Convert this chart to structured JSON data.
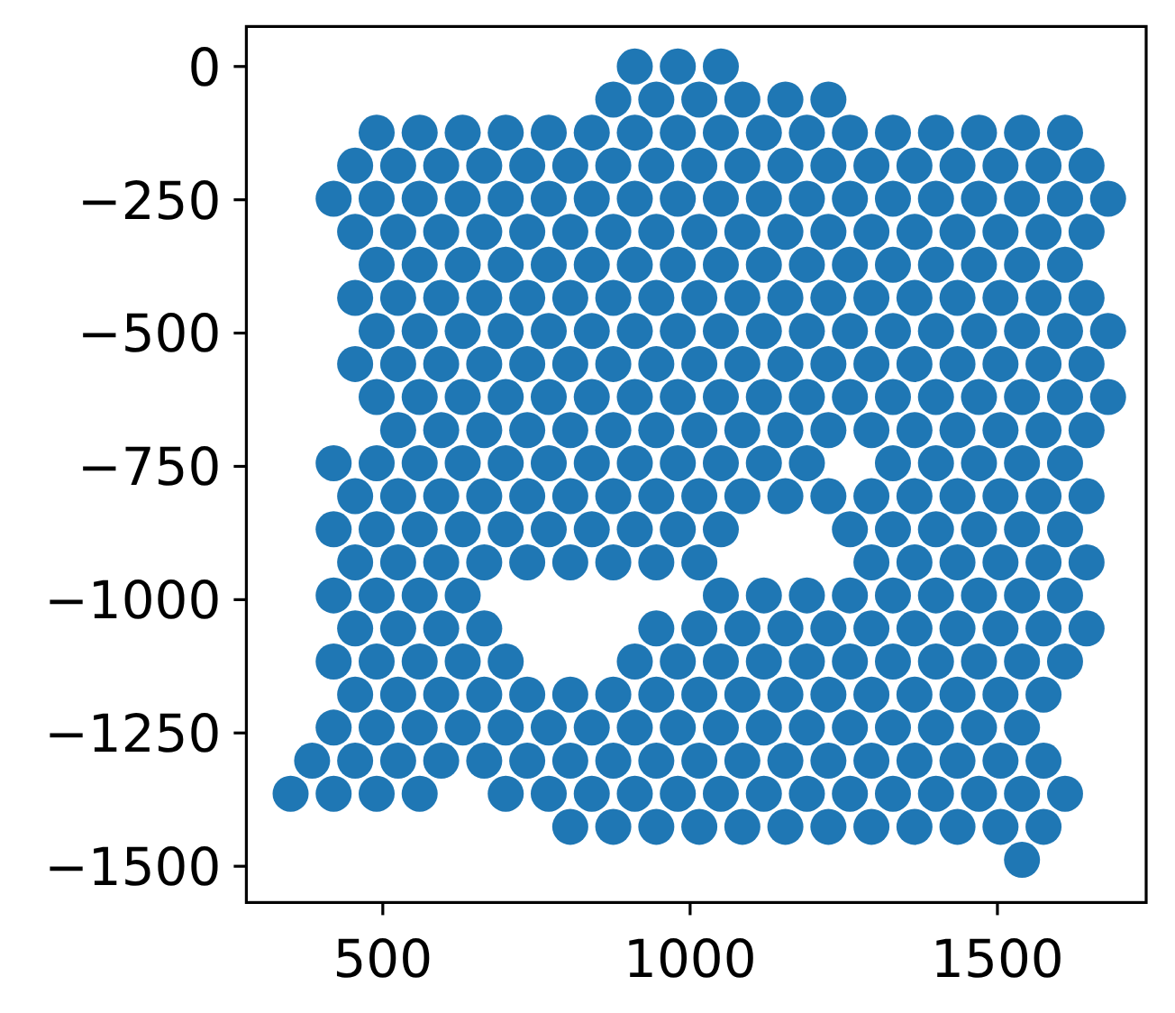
{
  "chart_data": {
    "type": "scatter",
    "color": "#1f77b4",
    "marker": "circle",
    "xlim": [
      278,
      1742
    ],
    "ylim": [
      -1568,
      75
    ],
    "xticks": [
      500,
      1000,
      1500
    ],
    "yticks": [
      0,
      {
        "value": -250,
        "label": "−250"
      },
      {
        "value": -500,
        "label": "−500"
      },
      {
        "value": -750,
        "label": "−750"
      },
      {
        "value": -1000,
        "label": "−1000"
      },
      {
        "value": -1250,
        "label": "−1250"
      },
      {
        "value": -1500,
        "label": "−1500"
      }
    ],
    "x": [
      910,
      980,
      1050,
      875,
      945,
      1015,
      1085,
      1155,
      1225,
      490,
      560,
      630,
      700,
      770,
      840,
      910,
      980,
      1050,
      1120,
      1190,
      1260,
      1330,
      1400,
      1470,
      1540,
      1610,
      455,
      525,
      595,
      665,
      735,
      805,
      875,
      945,
      1015,
      1085,
      1155,
      1225,
      1295,
      1365,
      1435,
      1505,
      1575,
      1645,
      420,
      490,
      560,
      630,
      700,
      770,
      840,
      910,
      980,
      1050,
      1120,
      1190,
      1260,
      1330,
      1400,
      1470,
      1540,
      1610,
      1680,
      455,
      525,
      595,
      665,
      735,
      805,
      875,
      945,
      1015,
      1085,
      1155,
      1225,
      1295,
      1365,
      1435,
      1505,
      1575,
      1645,
      490,
      560,
      630,
      700,
      770,
      840,
      910,
      980,
      1050,
      1120,
      1190,
      1260,
      1330,
      1400,
      1470,
      1540,
      1610,
      455,
      525,
      595,
      665,
      735,
      805,
      875,
      945,
      1015,
      1085,
      1155,
      1225,
      1295,
      1365,
      1435,
      1505,
      1575,
      1645,
      490,
      560,
      630,
      700,
      770,
      840,
      910,
      980,
      1050,
      1120,
      1190,
      1260,
      1330,
      1400,
      1470,
      1540,
      1610,
      1680,
      455,
      525,
      595,
      665,
      735,
      805,
      875,
      945,
      1015,
      1085,
      1155,
      1225,
      1295,
      1365,
      1435,
      1505,
      1575,
      1645,
      490,
      560,
      630,
      700,
      770,
      840,
      910,
      980,
      1050,
      1120,
      1190,
      1260,
      1330,
      1400,
      1470,
      1540,
      1610,
      1680,
      525,
      595,
      665,
      735,
      805,
      875,
      945,
      1015,
      1085,
      1155,
      1225,
      1295,
      1365,
      1435,
      1505,
      1575,
      1645,
      420,
      490,
      560,
      630,
      700,
      770,
      840,
      910,
      980,
      1050,
      1120,
      1190,
      1330,
      1400,
      1470,
      1540,
      1610,
      455,
      525,
      595,
      665,
      735,
      805,
      875,
      945,
      1015,
      1085,
      1155,
      1225,
      1295,
      1365,
      1435,
      1505,
      1575,
      1645,
      420,
      490,
      560,
      630,
      700,
      770,
      840,
      910,
      980,
      1050,
      1260,
      1330,
      1400,
      1470,
      1540,
      1610,
      455,
      525,
      595,
      665,
      735,
      805,
      875,
      945,
      1015,
      1295,
      1365,
      1435,
      1505,
      1575,
      1645,
      420,
      490,
      560,
      630,
      1050,
      1120,
      1190,
      1260,
      1330,
      1400,
      1470,
      1540,
      1610,
      455,
      525,
      595,
      665,
      945,
      1015,
      1085,
      1155,
      1225,
      1295,
      1365,
      1435,
      1505,
      1575,
      1645,
      420,
      490,
      560,
      630,
      700,
      910,
      980,
      1050,
      1120,
      1190,
      1260,
      1330,
      1400,
      1470,
      1540,
      1610,
      455,
      525,
      595,
      665,
      735,
      805,
      875,
      945,
      1015,
      1085,
      1155,
      1225,
      1295,
      1365,
      1435,
      1505,
      1575,
      420,
      490,
      560,
      630,
      700,
      770,
      840,
      910,
      980,
      1050,
      1120,
      1190,
      1260,
      1330,
      1400,
      1470,
      1540,
      385,
      455,
      525,
      595,
      665,
      735,
      805,
      875,
      945,
      1015,
      1085,
      1155,
      1225,
      1295,
      1365,
      1435,
      1505,
      1575,
      350,
      420,
      490,
      560,
      700,
      770,
      840,
      910,
      980,
      1050,
      1120,
      1190,
      1260,
      1330,
      1400,
      1470,
      1540,
      1610,
      805,
      875,
      945,
      1015,
      1085,
      1155,
      1225,
      1295,
      1365,
      1435,
      1505,
      1575,
      1540
    ],
    "values": [
      0,
      0,
      0,
      -62,
      -62,
      -62,
      -62,
      -62,
      -62,
      -124,
      -124,
      -124,
      -124,
      -124,
      -124,
      -124,
      -124,
      -124,
      -124,
      -124,
      -124,
      -124,
      -124,
      -124,
      -124,
      -124,
      -186,
      -186,
      -186,
      -186,
      -186,
      -186,
      -186,
      -186,
      -186,
      -186,
      -186,
      -186,
      -186,
      -186,
      -186,
      -186,
      -186,
      -186,
      -248,
      -248,
      -248,
      -248,
      -248,
      -248,
      -248,
      -248,
      -248,
      -248,
      -248,
      -248,
      -248,
      -248,
      -248,
      -248,
      -248,
      -248,
      -248,
      -310,
      -310,
      -310,
      -310,
      -310,
      -310,
      -310,
      -310,
      -310,
      -310,
      -310,
      -310,
      -310,
      -310,
      -310,
      -310,
      -310,
      -310,
      -372,
      -372,
      -372,
      -372,
      -372,
      -372,
      -372,
      -372,
      -372,
      -372,
      -372,
      -372,
      -372,
      -372,
      -372,
      -372,
      -372,
      -434,
      -434,
      -434,
      -434,
      -434,
      -434,
      -434,
      -434,
      -434,
      -434,
      -434,
      -434,
      -434,
      -434,
      -434,
      -434,
      -434,
      -434,
      -496,
      -496,
      -496,
      -496,
      -496,
      -496,
      -496,
      -496,
      -496,
      -496,
      -496,
      -496,
      -496,
      -496,
      -496,
      -496,
      -496,
      -496,
      -558,
      -558,
      -558,
      -558,
      -558,
      -558,
      -558,
      -558,
      -558,
      -558,
      -558,
      -558,
      -558,
      -558,
      -558,
      -558,
      -558,
      -558,
      -620,
      -620,
      -620,
      -620,
      -620,
      -620,
      -620,
      -620,
      -620,
      -620,
      -620,
      -620,
      -620,
      -620,
      -620,
      -620,
      -620,
      -620,
      -682,
      -682,
      -682,
      -682,
      -682,
      -682,
      -682,
      -682,
      -682,
      -682,
      -682,
      -682,
      -682,
      -682,
      -682,
      -682,
      -682,
      -744,
      -744,
      -744,
      -744,
      -744,
      -744,
      -744,
      -744,
      -744,
      -744,
      -744,
      -744,
      -744,
      -744,
      -744,
      -744,
      -744,
      -806,
      -806,
      -806,
      -806,
      -806,
      -806,
      -806,
      -806,
      -806,
      -806,
      -806,
      -806,
      -806,
      -806,
      -806,
      -806,
      -806,
      -806,
      -868,
      -868,
      -868,
      -868,
      -868,
      -868,
      -868,
      -868,
      -868,
      -868,
      -868,
      -868,
      -868,
      -868,
      -868,
      -868,
      -930,
      -930,
      -930,
      -930,
      -930,
      -930,
      -930,
      -930,
      -930,
      -930,
      -930,
      -930,
      -930,
      -930,
      -930,
      -992,
      -992,
      -992,
      -992,
      -992,
      -992,
      -992,
      -992,
      -992,
      -992,
      -992,
      -992,
      -992,
      -1054,
      -1054,
      -1054,
      -1054,
      -1054,
      -1054,
      -1054,
      -1054,
      -1054,
      -1054,
      -1054,
      -1054,
      -1054,
      -1054,
      -1054,
      -1116,
      -1116,
      -1116,
      -1116,
      -1116,
      -1116,
      -1116,
      -1116,
      -1116,
      -1116,
      -1116,
      -1116,
      -1116,
      -1116,
      -1116,
      -1116,
      -1178,
      -1178,
      -1178,
      -1178,
      -1178,
      -1178,
      -1178,
      -1178,
      -1178,
      -1178,
      -1178,
      -1178,
      -1178,
      -1178,
      -1178,
      -1178,
      -1178,
      -1240,
      -1240,
      -1240,
      -1240,
      -1240,
      -1240,
      -1240,
      -1240,
      -1240,
      -1240,
      -1240,
      -1240,
      -1240,
      -1240,
      -1240,
      -1240,
      -1240,
      -1302,
      -1302,
      -1302,
      -1302,
      -1302,
      -1302,
      -1302,
      -1302,
      -1302,
      -1302,
      -1302,
      -1302,
      -1302,
      -1302,
      -1302,
      -1302,
      -1302,
      -1302,
      -1364,
      -1364,
      -1364,
      -1364,
      -1364,
      -1364,
      -1364,
      -1364,
      -1364,
      -1364,
      -1364,
      -1364,
      -1364,
      -1364,
      -1364,
      -1364,
      -1364,
      -1364,
      -1426,
      -1426,
      -1426,
      -1426,
      -1426,
      -1426,
      -1426,
      -1426,
      -1426,
      -1426,
      -1426,
      -1426,
      -1488
    ]
  }
}
